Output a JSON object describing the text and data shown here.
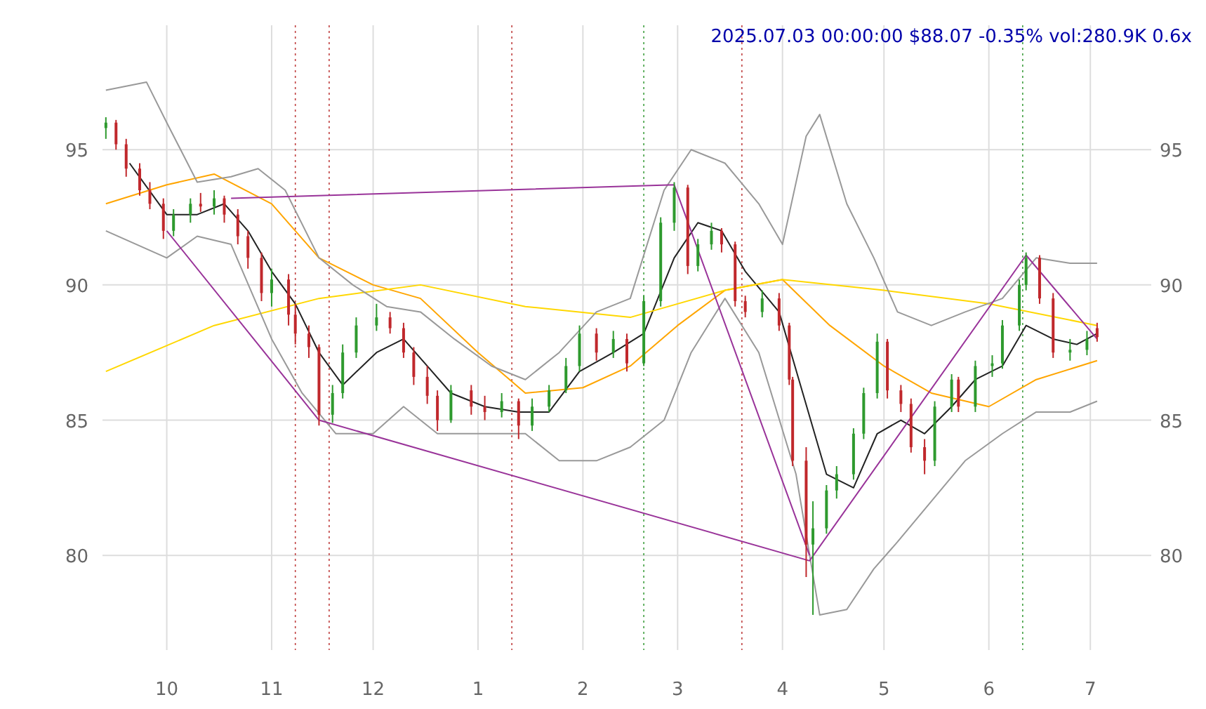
{
  "chart_data": {
    "type": "candlestick",
    "title": "2025.07.03 00:00:00 $88.07 -0.35% vol:280.9K 0.6x",
    "x": [
      "2024-09-13",
      "2024-09-16",
      "2024-09-19",
      "2024-09-23",
      "2024-09-26",
      "2024-09-30",
      "2024-10-03",
      "2024-10-08",
      "2024-10-11",
      "2024-10-15",
      "2024-10-18",
      "2024-10-22",
      "2024-10-25",
      "2024-10-29",
      "2024-11-01",
      "2024-11-06",
      "2024-11-08",
      "2024-11-12",
      "2024-11-15",
      "2024-11-19",
      "2024-11-22",
      "2024-11-26",
      "2024-12-02",
      "2024-12-06",
      "2024-12-10",
      "2024-12-13",
      "2024-12-17",
      "2024-12-20",
      "2024-12-24",
      "2024-12-30",
      "2025-01-03",
      "2025-01-08",
      "2025-01-13",
      "2025-01-17",
      "2025-01-22",
      "2025-01-27",
      "2025-01-31",
      "2025-02-05",
      "2025-02-10",
      "2025-02-14",
      "2025-02-19",
      "2025-02-24",
      "2025-02-28",
      "2025-03-04",
      "2025-03-07",
      "2025-03-11",
      "2025-03-14",
      "2025-03-18",
      "2025-03-21",
      "2025-03-26",
      "2025-03-31",
      "2025-04-03",
      "2025-04-04",
      "2025-04-08",
      "2025-04-10",
      "2025-04-14",
      "2025-04-17",
      "2025-04-22",
      "2025-04-25",
      "2025-04-29",
      "2025-05-02",
      "2025-05-06",
      "2025-05-09",
      "2025-05-13",
      "2025-05-16",
      "2025-05-21",
      "2025-05-23",
      "2025-05-28",
      "2025-06-02",
      "2025-06-05",
      "2025-06-10",
      "2025-06-12",
      "2025-06-16",
      "2025-06-20",
      "2025-06-25",
      "2025-06-30",
      "2025-07-03"
    ],
    "ohlc": [
      [
        95.8,
        96.2,
        95.4,
        96.0
      ],
      [
        96.0,
        96.1,
        95.0,
        95.2
      ],
      [
        95.2,
        95.4,
        94.0,
        94.3
      ],
      [
        94.3,
        94.5,
        93.3,
        93.5
      ],
      [
        93.5,
        93.8,
        92.8,
        93.0
      ],
      [
        93.0,
        93.2,
        91.7,
        92.0
      ],
      [
        92.0,
        92.8,
        91.8,
        92.6
      ],
      [
        92.6,
        93.2,
        92.3,
        93.0
      ],
      [
        93.0,
        93.4,
        92.7,
        92.9
      ],
      [
        92.9,
        93.5,
        92.6,
        93.2
      ],
      [
        93.2,
        93.3,
        92.3,
        92.6
      ],
      [
        92.6,
        92.8,
        91.5,
        91.8
      ],
      [
        91.8,
        92.0,
        90.6,
        91.0
      ],
      [
        91.0,
        91.2,
        89.4,
        89.7
      ],
      [
        89.7,
        90.6,
        89.2,
        90.2
      ],
      [
        90.2,
        90.4,
        88.5,
        88.9
      ],
      [
        88.9,
        89.3,
        87.8,
        88.2
      ],
      [
        88.2,
        88.5,
        87.3,
        87.7
      ],
      [
        87.7,
        87.8,
        84.8,
        85.2
      ],
      [
        85.2,
        86.3,
        84.9,
        86.0
      ],
      [
        86.0,
        87.8,
        85.8,
        87.5
      ],
      [
        87.5,
        88.8,
        87.3,
        88.5
      ],
      [
        88.5,
        89.3,
        88.3,
        88.8
      ],
      [
        88.8,
        89.0,
        88.2,
        88.4
      ],
      [
        88.4,
        88.6,
        87.3,
        87.5
      ],
      [
        87.5,
        87.7,
        86.3,
        86.6
      ],
      [
        86.6,
        87.0,
        85.6,
        85.9
      ],
      [
        85.9,
        86.1,
        84.6,
        85.0
      ],
      [
        85.0,
        86.3,
        84.9,
        86.1
      ],
      [
        86.1,
        86.3,
        85.2,
        85.5
      ],
      [
        85.5,
        85.9,
        85.0,
        85.3
      ],
      [
        85.3,
        86.0,
        85.1,
        85.7
      ],
      [
        85.7,
        85.8,
        84.3,
        84.8
      ],
      [
        84.8,
        85.8,
        84.6,
        85.5
      ],
      [
        85.5,
        86.3,
        85.3,
        86.1
      ],
      [
        86.1,
        87.3,
        86.0,
        87.0
      ],
      [
        87.0,
        88.5,
        86.8,
        88.2
      ],
      [
        88.2,
        88.4,
        87.2,
        87.5
      ],
      [
        87.5,
        88.3,
        87.3,
        88.0
      ],
      [
        88.0,
        88.2,
        86.8,
        87.1
      ],
      [
        87.1,
        89.6,
        87.0,
        89.4
      ],
      [
        89.4,
        92.5,
        89.2,
        92.3
      ],
      [
        92.3,
        93.8,
        92.0,
        93.6
      ],
      [
        93.6,
        93.7,
        90.4,
        90.7
      ],
      [
        90.7,
        91.7,
        90.5,
        91.5
      ],
      [
        91.5,
        92.3,
        91.3,
        92.0
      ],
      [
        92.0,
        92.1,
        91.2,
        91.5
      ],
      [
        91.5,
        91.6,
        89.2,
        89.4
      ],
      [
        89.4,
        89.6,
        88.8,
        89.0
      ],
      [
        89.0,
        89.8,
        88.8,
        89.5
      ],
      [
        89.5,
        89.7,
        88.3,
        88.5
      ],
      [
        88.5,
        88.6,
        86.3,
        86.5
      ],
      [
        86.5,
        86.6,
        83.3,
        83.5
      ],
      [
        83.5,
        84.0,
        79.2,
        80.4
      ],
      [
        80.4,
        82.0,
        77.8,
        81.0
      ],
      [
        81.0,
        82.6,
        80.8,
        82.4
      ],
      [
        82.4,
        83.3,
        82.1,
        83.0
      ],
      [
        83.0,
        84.7,
        82.8,
        84.5
      ],
      [
        84.5,
        86.2,
        84.3,
        86.0
      ],
      [
        86.0,
        88.2,
        85.8,
        87.9
      ],
      [
        87.9,
        88.0,
        85.8,
        86.1
      ],
      [
        86.1,
        86.3,
        85.3,
        85.6
      ],
      [
        85.6,
        85.8,
        83.8,
        84.0
      ],
      [
        84.0,
        84.3,
        83.0,
        83.5
      ],
      [
        83.5,
        85.7,
        83.3,
        85.5
      ],
      [
        85.5,
        86.7,
        85.3,
        86.5
      ],
      [
        86.5,
        86.6,
        85.3,
        85.5
      ],
      [
        85.5,
        87.2,
        85.3,
        87.0
      ],
      [
        87.0,
        87.4,
        86.6,
        87.1
      ],
      [
        87.1,
        88.7,
        86.9,
        88.5
      ],
      [
        88.5,
        90.2,
        88.3,
        90.0
      ],
      [
        90.0,
        91.2,
        89.8,
        91.0
      ],
      [
        91.0,
        91.1,
        89.3,
        89.5
      ],
      [
        89.5,
        89.7,
        87.3,
        87.5
      ],
      [
        87.5,
        88.0,
        87.2,
        87.6
      ],
      [
        87.6,
        88.3,
        87.4,
        88.0
      ],
      [
        88.4,
        88.6,
        87.9,
        88.07
      ]
    ],
    "series": [
      {
        "type": "line",
        "color": "#222222",
        "x": [
          "2024-09-20",
          "2024-10-01",
          "2024-10-10",
          "2024-10-18",
          "2024-10-25",
          "2024-11-01",
          "2024-11-08",
          "2024-11-15",
          "2024-11-22",
          "2024-12-02",
          "2024-12-10",
          "2024-12-17",
          "2024-12-24",
          "2025-01-03",
          "2025-01-13",
          "2025-01-22",
          "2025-01-31",
          "2025-02-10",
          "2025-02-19",
          "2025-02-28",
          "2025-03-07",
          "2025-03-14",
          "2025-03-21",
          "2025-03-31",
          "2025-04-07",
          "2025-04-14",
          "2025-04-22",
          "2025-04-29",
          "2025-05-06",
          "2025-05-13",
          "2025-05-21",
          "2025-05-28",
          "2025-06-05",
          "2025-06-12",
          "2025-06-20",
          "2025-06-27",
          "2025-07-03"
        ],
        "values": [
          94.5,
          92.6,
          92.6,
          93,
          92,
          90.5,
          89.3,
          87.5,
          86.3,
          87.5,
          88,
          87,
          86,
          85.5,
          85.3,
          85.3,
          86.8,
          87.5,
          88.2,
          91,
          92.3,
          92,
          90.5,
          89,
          86,
          83,
          82.5,
          84.5,
          85,
          84.5,
          85.5,
          86.5,
          87,
          88.5,
          88,
          87.8,
          88.2
        ]
      },
      {
        "type": "line",
        "color": "#ffa500",
        "x": [
          "2024-09-13",
          "2024-10-01",
          "2024-10-15",
          "2024-11-01",
          "2024-11-15",
          "2024-12-01",
          "2024-12-15",
          "2025-01-01",
          "2025-01-15",
          "2025-02-01",
          "2025-02-15",
          "2025-03-01",
          "2025-03-15",
          "2025-04-01",
          "2025-04-15",
          "2025-05-01",
          "2025-05-15",
          "2025-06-01",
          "2025-06-15",
          "2025-07-03"
        ],
        "values": [
          93,
          93.7,
          94.1,
          93,
          91,
          90,
          89.5,
          87.5,
          86,
          86.2,
          87,
          88.5,
          89.8,
          90.2,
          88.5,
          87,
          86,
          85.5,
          86.5,
          87.2
        ]
      },
      {
        "type": "line",
        "color": "#ffd700",
        "x": [
          "2024-09-13",
          "2024-10-15",
          "2024-11-15",
          "2024-12-15",
          "2025-01-15",
          "2025-02-15",
          "2025-03-15",
          "2025-04-01",
          "2025-05-01",
          "2025-06-01",
          "2025-07-03"
        ],
        "values": [
          86.8,
          88.5,
          89.5,
          90,
          89.2,
          88.8,
          89.8,
          90.2,
          89.8,
          89.3,
          88.5
        ]
      },
      {
        "type": "line",
        "color": "#999999",
        "x": [
          "2024-09-13",
          "2024-09-25",
          "2024-10-01",
          "2024-10-10",
          "2024-10-20",
          "2024-10-28",
          "2024-11-05",
          "2024-11-15",
          "2024-11-25",
          "2024-12-05",
          "2024-12-15",
          "2024-12-25",
          "2025-01-05",
          "2025-01-15",
          "2025-01-25",
          "2025-02-05",
          "2025-02-15",
          "2025-02-25",
          "2025-03-05",
          "2025-03-15",
          "2025-03-25",
          "2025-04-01",
          "2025-04-08",
          "2025-04-12",
          "2025-04-20",
          "2025-04-28",
          "2025-05-05",
          "2025-05-15",
          "2025-05-25",
          "2025-06-05",
          "2025-06-15",
          "2025-06-25",
          "2025-07-03"
        ],
        "values": [
          97.2,
          97.5,
          96,
          93.8,
          94,
          94.3,
          93.5,
          91,
          90,
          89.2,
          89,
          88,
          87,
          86.5,
          87.5,
          89,
          89.5,
          93.5,
          95,
          94.5,
          93,
          91.5,
          95.5,
          96.3,
          93,
          91,
          89,
          88.5,
          89,
          89.5,
          91,
          90.8,
          90.8
        ]
      },
      {
        "type": "line",
        "color": "#999999",
        "x": [
          "2024-09-13",
          "2024-10-01",
          "2024-10-10",
          "2024-10-20",
          "2024-11-01",
          "2024-11-10",
          "2024-11-20",
          "2024-12-01",
          "2024-12-10",
          "2024-12-20",
          "2025-01-01",
          "2025-01-15",
          "2025-01-25",
          "2025-02-05",
          "2025-02-15",
          "2025-02-25",
          "2025-03-05",
          "2025-03-15",
          "2025-03-25",
          "2025-04-05",
          "2025-04-12",
          "2025-04-20",
          "2025-04-28",
          "2025-05-05",
          "2025-05-15",
          "2025-05-25",
          "2025-06-05",
          "2025-06-15",
          "2025-06-25",
          "2025-07-03"
        ],
        "values": [
          92,
          91,
          91.8,
          91.5,
          88,
          86,
          84.5,
          84.5,
          85.5,
          84.5,
          84.5,
          84.5,
          83.5,
          83.5,
          84,
          85,
          87.5,
          89.5,
          87.5,
          83,
          77.8,
          78,
          79.5,
          80.5,
          82,
          83.5,
          84.5,
          85.3,
          85.3,
          85.7
        ]
      },
      {
        "type": "line",
        "color": "#993399",
        "x": [
          "2024-10-01",
          "2024-11-15",
          "2025-04-09",
          "2025-06-12",
          "2025-07-03"
        ],
        "values": [
          92,
          85,
          79.8,
          91.1,
          88
        ]
      },
      {
        "type": "line",
        "color": "#993399",
        "x": [
          "2024-10-20",
          "2025-02-28",
          "2025-04-09"
        ],
        "values": [
          93.2,
          93.7,
          80
        ]
      }
    ],
    "ref_lines": [
      {
        "axis": "x",
        "value": "2024-11-08",
        "color": "#c04040",
        "line_style": "dotted"
      },
      {
        "axis": "x",
        "value": "2024-11-18",
        "color": "#c04040",
        "line_style": "dotted"
      },
      {
        "axis": "x",
        "value": "2025-01-11",
        "color": "#c04040",
        "line_style": "dotted"
      },
      {
        "axis": "x",
        "value": "2025-02-19",
        "color": "#40a040",
        "line_style": "dotted"
      },
      {
        "axis": "x",
        "value": "2025-03-20",
        "color": "#c04040",
        "line_style": "dotted"
      },
      {
        "axis": "x",
        "value": "2025-06-11",
        "color": "#40a040",
        "line_style": "dotted"
      }
    ],
    "xlim": [
      "2024-09-12",
      "2025-07-19"
    ],
    "xticks": [
      {
        "value": "2024-10-01",
        "label": "10"
      },
      {
        "value": "2024-11-01",
        "label": "11"
      },
      {
        "value": "2024-12-01",
        "label": "12"
      },
      {
        "value": "2025-01-01",
        "label": "1"
      },
      {
        "value": "2025-02-01",
        "label": "2"
      },
      {
        "value": "2025-03-01",
        "label": "3"
      },
      {
        "value": "2025-04-01",
        "label": "4"
      },
      {
        "value": "2025-05-01",
        "label": "5"
      },
      {
        "value": "2025-06-01",
        "label": "6"
      },
      {
        "value": "2025-07-01",
        "label": "7"
      }
    ],
    "ylim": [
      76.5,
      99.6
    ],
    "yticks": [
      80,
      85,
      90,
      95
    ],
    "y2lim": [
      76.5,
      99.6
    ],
    "y2ticks": [
      80,
      85,
      90,
      95
    ],
    "grid": true,
    "marker": "none",
    "line_style": "solid"
  }
}
